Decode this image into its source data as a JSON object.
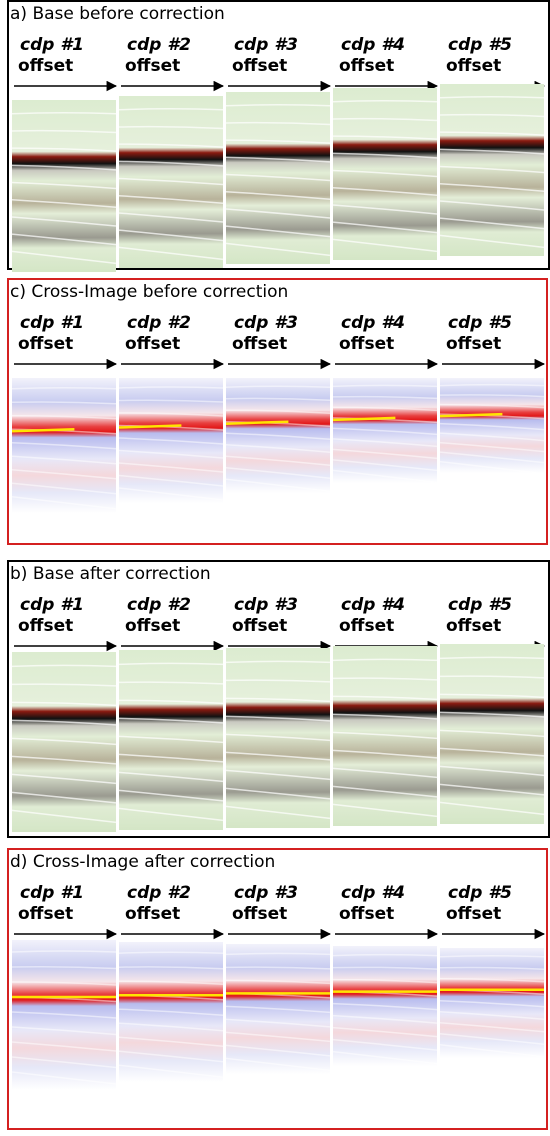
{
  "panels": [
    {
      "title": "a) Base before correction",
      "gathers": [
        {
          "cdp": "cdp #1",
          "axis": "offset"
        },
        {
          "cdp": "cdp #2",
          "axis": "offset"
        },
        {
          "cdp": "cdp #3",
          "axis": "offset"
        },
        {
          "cdp": "cdp #4",
          "axis": "offset"
        },
        {
          "cdp": "cdp #5",
          "axis": "offset"
        }
      ]
    },
    {
      "title": "c) Cross-Image before correction",
      "gathers": [
        {
          "cdp": "cdp #1",
          "axis": "offset"
        },
        {
          "cdp": "cdp #2",
          "axis": "offset"
        },
        {
          "cdp": "cdp #3",
          "axis": "offset"
        },
        {
          "cdp": "cdp #4",
          "axis": "offset"
        },
        {
          "cdp": "cdp #5",
          "axis": "offset"
        }
      ]
    },
    {
      "title": "b) Base after correction",
      "gathers": [
        {
          "cdp": "cdp #1",
          "axis": "offset"
        },
        {
          "cdp": "cdp #2",
          "axis": "offset"
        },
        {
          "cdp": "cdp #3",
          "axis": "offset"
        },
        {
          "cdp": "cdp #4",
          "axis": "offset"
        },
        {
          "cdp": "cdp #5",
          "axis": "offset"
        }
      ]
    },
    {
      "title": "d) Cross-Image after correction",
      "gathers": [
        {
          "cdp": "cdp #1",
          "axis": "offset"
        },
        {
          "cdp": "cdp #2",
          "axis": "offset"
        },
        {
          "cdp": "cdp #3",
          "axis": "offset"
        },
        {
          "cdp": "cdp #4",
          "axis": "offset"
        },
        {
          "cdp": "cdp #5",
          "axis": "offset"
        }
      ]
    }
  ]
}
